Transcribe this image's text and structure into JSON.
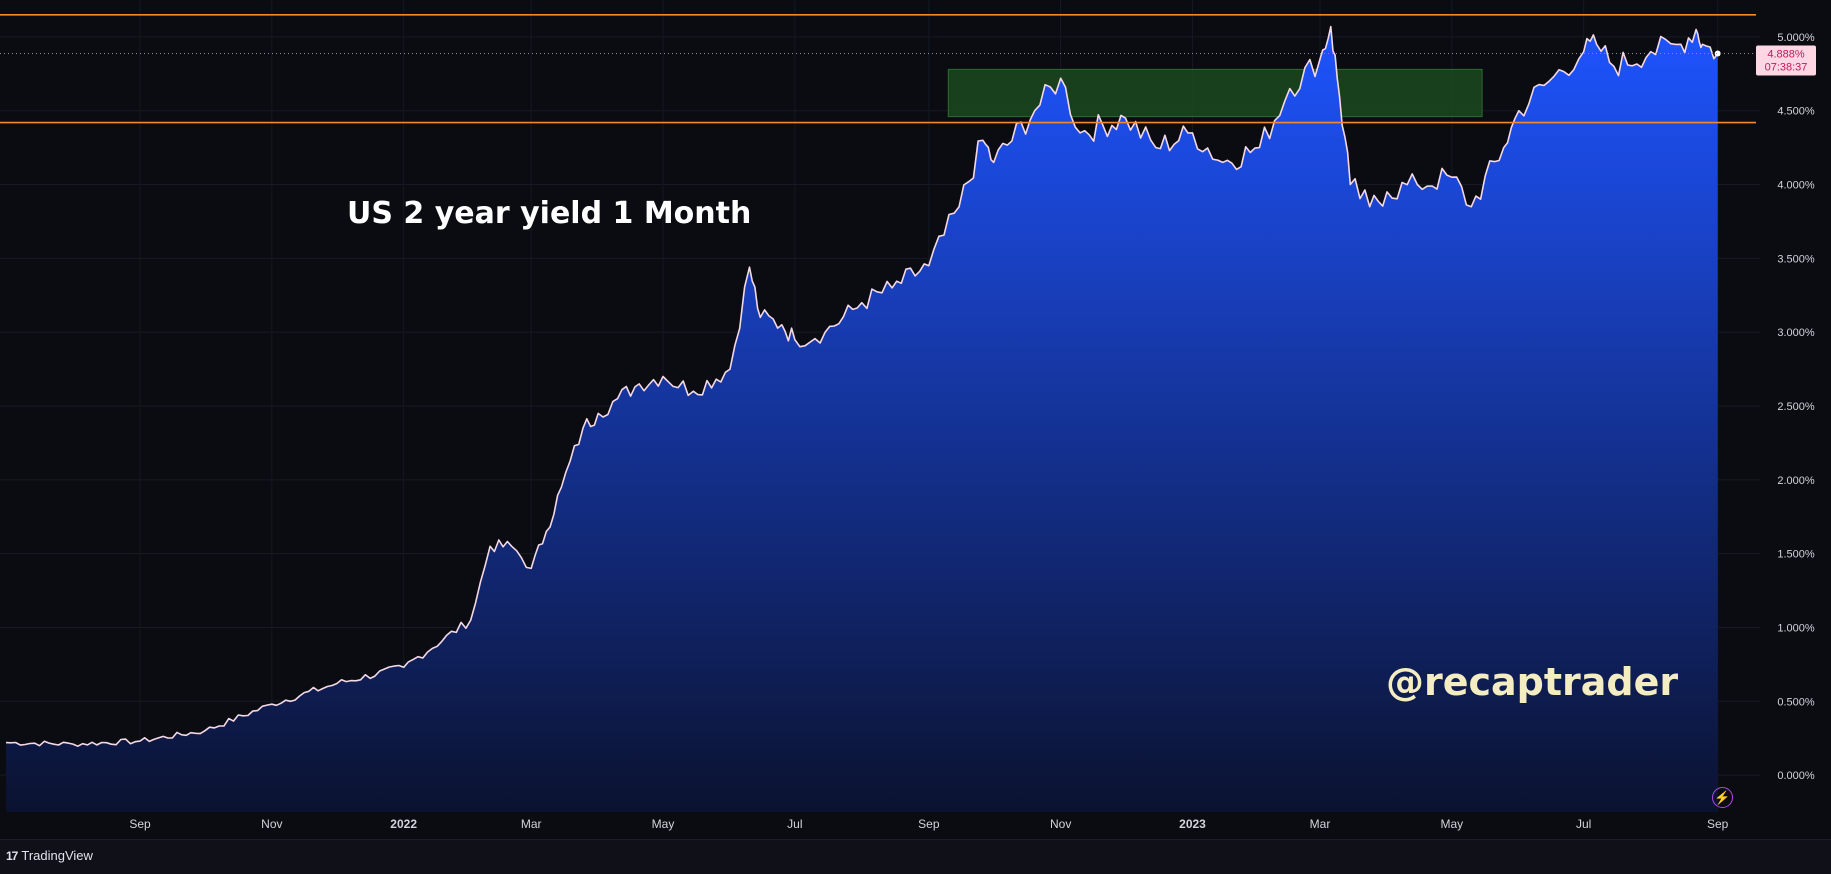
{
  "chart_data": {
    "type": "area",
    "title": "US 2 year yield 1 Month",
    "watermark": "@recaptrader",
    "x": [
      "2021-07-01",
      "2021-08-01",
      "2021-09-01",
      "2021-10-01",
      "2021-11-01",
      "2021-12-01",
      "2022-01-01",
      "2022-02-01",
      "2022-02-10",
      "2022-02-20",
      "2022-03-01",
      "2022-03-08",
      "2022-03-15",
      "2022-03-25",
      "2022-04-01",
      "2022-04-10",
      "2022-04-20",
      "2022-05-01",
      "2022-05-15",
      "2022-06-01",
      "2022-06-10",
      "2022-06-15",
      "2022-06-25",
      "2022-07-01",
      "2022-07-15",
      "2022-08-01",
      "2022-08-15",
      "2022-09-01",
      "2022-09-15",
      "2022-09-26",
      "2022-10-01",
      "2022-10-20",
      "2022-11-01",
      "2022-11-10",
      "2022-12-01",
      "2022-12-15",
      "2023-01-01",
      "2023-01-15",
      "2023-02-01",
      "2023-02-15",
      "2023-03-01",
      "2023-03-06",
      "2023-03-10",
      "2023-03-15",
      "2023-03-24",
      "2023-04-01",
      "2023-04-15",
      "2023-05-01",
      "2023-05-10",
      "2023-05-25",
      "2023-06-01",
      "2023-06-15",
      "2023-07-01",
      "2023-07-07",
      "2023-07-15",
      "2023-08-01",
      "2023-08-15",
      "2023-08-22",
      "2023-08-25",
      "2023-09-01"
    ],
    "values": [
      0.22,
      0.21,
      0.23,
      0.3,
      0.48,
      0.62,
      0.73,
      1.05,
      1.55,
      1.55,
      1.4,
      1.65,
      1.95,
      2.35,
      2.45,
      2.55,
      2.65,
      2.7,
      2.6,
      2.75,
      3.44,
      3.1,
      3.05,
      2.95,
      3.0,
      3.2,
      3.3,
      3.45,
      3.85,
      4.3,
      4.15,
      4.5,
      4.72,
      4.35,
      4.45,
      4.25,
      4.35,
      4.15,
      4.25,
      4.65,
      4.85,
      5.07,
      4.6,
      4.0,
      3.85,
      3.95,
      4.0,
      4.05,
      3.85,
      4.25,
      4.5,
      4.7,
      4.9,
      4.95,
      4.8,
      4.9,
      4.95,
      5.05,
      4.95,
      4.888
    ],
    "ylim": [
      -0.25,
      5.25
    ],
    "y_ticks": [
      "5.000%",
      "4.500%",
      "4.000%",
      "3.500%",
      "3.000%",
      "2.500%",
      "2.000%",
      "1.500%",
      "1.000%",
      "0.500%",
      "0.000%"
    ],
    "x_ticks": [
      "Sep",
      "Nov",
      "2022",
      "Mar",
      "May",
      "Jul",
      "Sep",
      "Nov",
      "2023",
      "Mar",
      "May",
      "Jul",
      "Sep"
    ],
    "last_value_label": "4.888%",
    "countdown_label": "07:38:37",
    "horizontal_lines": [
      5.15,
      4.42
    ],
    "zone": {
      "from": "2022-09-10",
      "to": "2023-05-15",
      "y_low": 4.46,
      "y_high": 4.78
    },
    "grid": true,
    "line_color": "#f4d8e4",
    "fill_top_color": "#1e54ff",
    "fill_bottom_color": "#0d1a4a",
    "level_line_color": "#f0892f",
    "zone_color": "#1b4a1f"
  },
  "footer": {
    "brand": "TradingView",
    "brand_mark": "17"
  },
  "icons": {
    "bolt": "lightning-icon"
  }
}
